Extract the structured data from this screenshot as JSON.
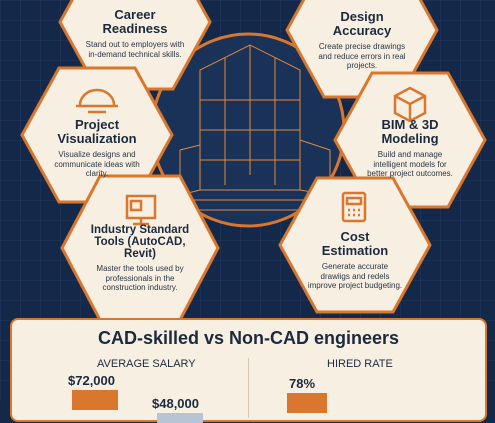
{
  "cards": [
    {
      "title": "Career Readiness",
      "text": "Stand out to employers with in-demand technical skills."
    },
    {
      "title": "Design Accuracy",
      "text": "Create precise drawings and reduce errors in real projects."
    },
    {
      "title": "Project Visualization",
      "text": "Visualize designs and communicate ideas with clarity."
    },
    {
      "title": "BIM & 3D Modeling",
      "text": "Build and manage intelligent models for better project outcomes."
    },
    {
      "title": "Industry Standard Tools (AutoCAD, Revit)",
      "text": "Master the tools used by professionals in the construction industry."
    },
    {
      "title": "Cost Estimation",
      "text": "Generate accurate drawiigs and redels improve project budgeting."
    }
  ],
  "comparison": {
    "title": "CAD-skilled vs Non-CAD engineers",
    "salary": {
      "label": "AVERAGE SALARY",
      "cad": "$72,000",
      "non_cad": "$48,000"
    },
    "hired": {
      "label": "HIRED RATE",
      "cad": "78%"
    }
  }
}
